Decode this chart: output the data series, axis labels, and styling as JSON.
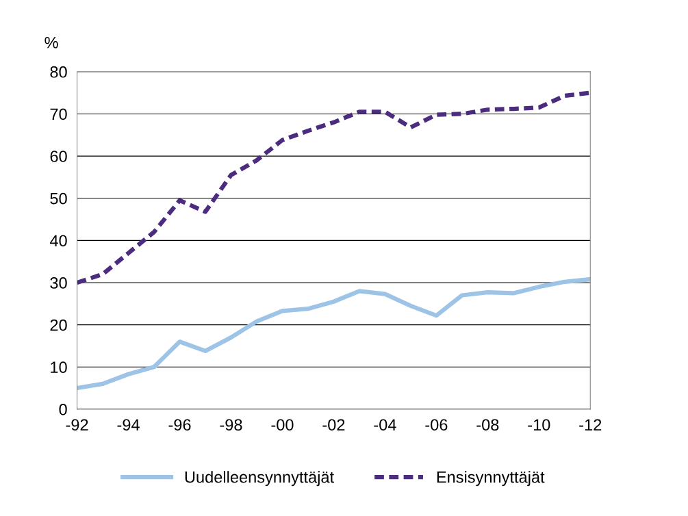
{
  "chart_data": {
    "type": "line",
    "ylabel": "%",
    "categories": [
      "-92",
      null,
      "-94",
      null,
      "-96",
      null,
      "-98",
      null,
      "-00",
      null,
      "-02",
      null,
      "-04",
      null,
      "-06",
      null,
      "-08",
      null,
      "-10",
      null,
      "-12"
    ],
    "series": [
      {
        "name": "Uudelleensynnyttäjät",
        "color": "#9dc3e6",
        "line_style": "solid",
        "values": [
          5,
          6,
          8.3,
          10,
          16,
          13.8,
          17,
          20.8,
          23.3,
          23.8,
          25.5,
          28,
          27.3,
          24.5,
          22.2,
          27,
          27.7,
          27.5,
          29,
          30.2,
          30.8
        ]
      },
      {
        "name": "Ensisynnyttäjät",
        "color": "#4b2c7f",
        "line_style": "dashed",
        "values": [
          30,
          32,
          37,
          42,
          49.5,
          46.8,
          55.5,
          59,
          63.8,
          66,
          68,
          70.5,
          70.5,
          66.8,
          69.8,
          70,
          71,
          71.2,
          71.5,
          74.3,
          75
        ]
      }
    ],
    "ylim": [
      0,
      80
    ],
    "yticks": [
      0,
      10,
      20,
      30,
      40,
      50,
      60,
      70,
      80
    ],
    "grid": "y",
    "legend": "bottom",
    "marker": "none"
  }
}
